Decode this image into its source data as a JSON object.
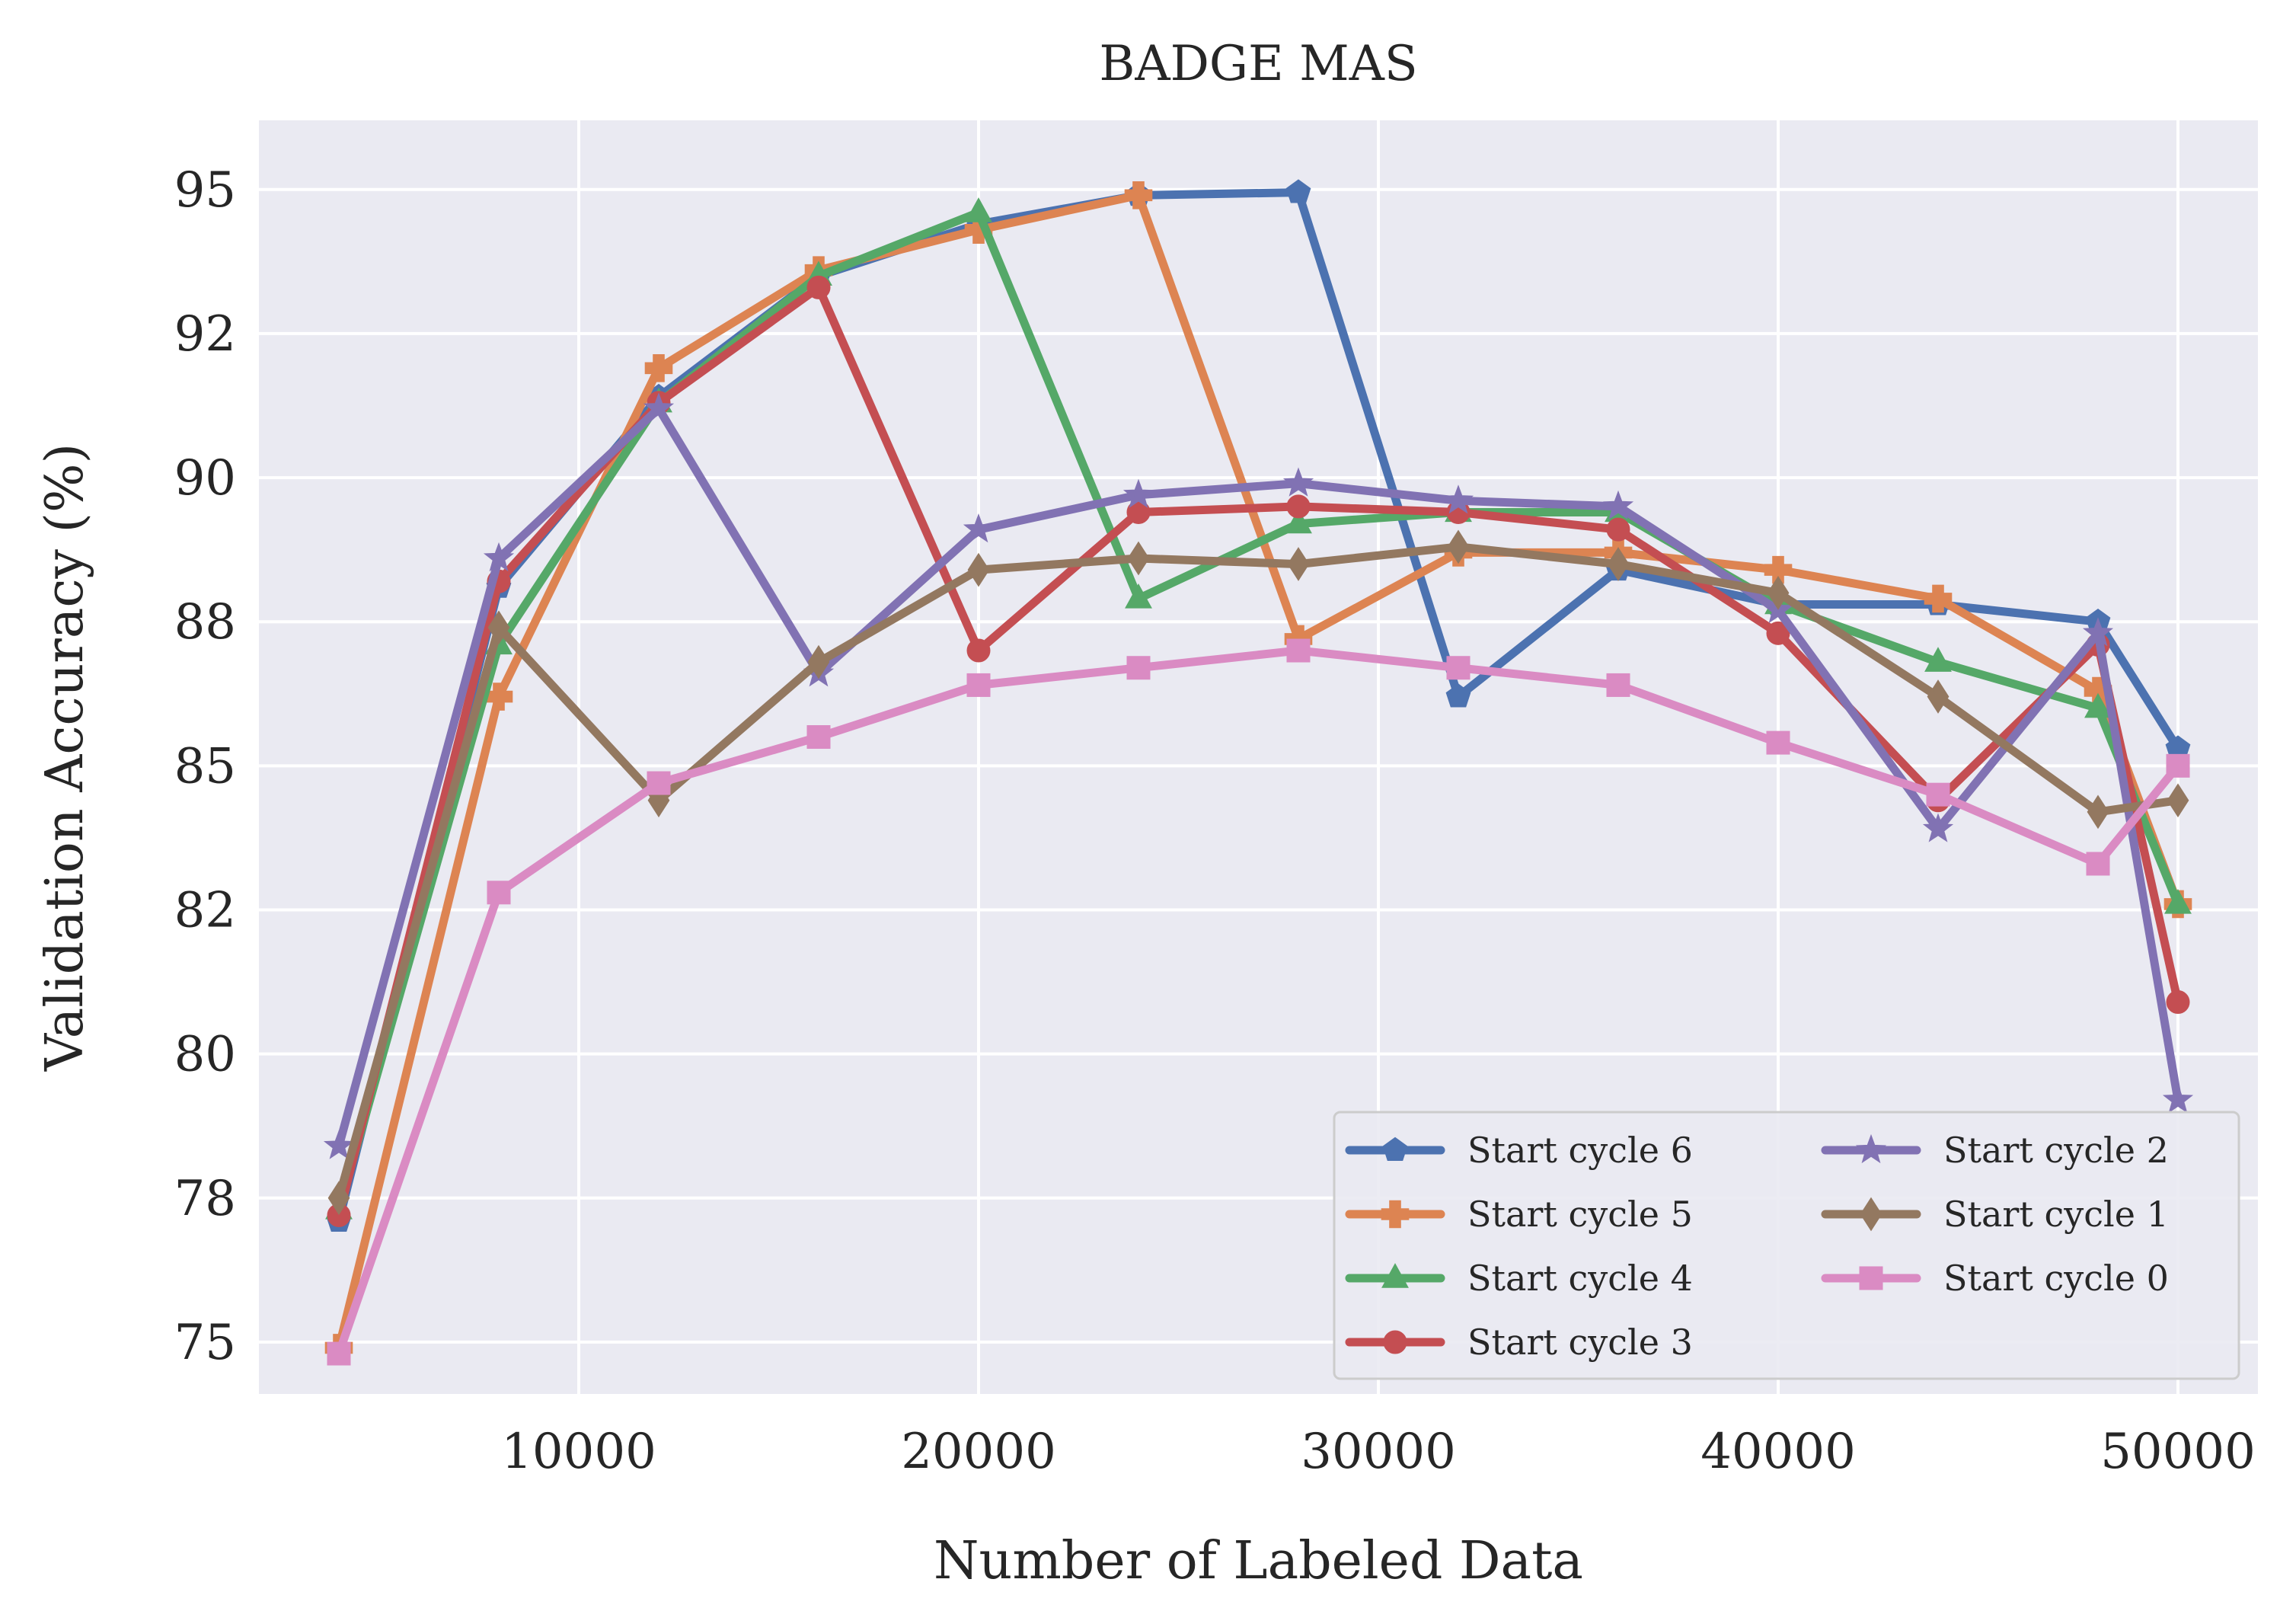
{
  "chart_data": {
    "type": "line",
    "title": "BADGE MAS",
    "xlabel": "Number of Labeled Data",
    "ylabel": "Validation Accuracy (%)",
    "xlim": [
      2000,
      52000
    ],
    "ylim": [
      74.1,
      96.2
    ],
    "x_ticks": [
      10000,
      20000,
      30000,
      40000,
      50000
    ],
    "x_tick_labels": [
      "10000",
      "20000",
      "30000",
      "40000",
      "50000"
    ],
    "y_ticks": [
      75,
      77.5,
      80,
      82.5,
      85,
      87.5,
      90,
      92.5,
      95
    ],
    "y_tick_labels": [
      "75",
      "78",
      "80",
      "82",
      "85",
      "88",
      "90",
      "92",
      "95"
    ],
    "grid": true,
    "background": "#eaeaf2",
    "legend_position": "lower right",
    "legend_columns": 2,
    "x": [
      4000,
      8000,
      12000,
      16000,
      20000,
      24000,
      28000,
      32000,
      36000,
      40000,
      44000,
      48000,
      50000
    ],
    "series": [
      {
        "name": "Start cycle 6",
        "color": "#4c72b0",
        "marker": "pentagon",
        "values": [
          77.1,
          88.1,
          91.4,
          93.5,
          94.4,
          94.9,
          94.95,
          86.2,
          88.4,
          87.8,
          87.8,
          87.5,
          85.3
        ]
      },
      {
        "name": "Start cycle 5",
        "color": "#dd8452",
        "marker": "plus",
        "values": [
          74.9,
          86.2,
          91.9,
          93.6,
          94.3,
          94.9,
          87.2,
          88.7,
          88.7,
          88.4,
          87.9,
          86.3,
          82.6
        ]
      },
      {
        "name": "Start cycle 4",
        "color": "#55a868",
        "marker": "triangle",
        "values": [
          77.3,
          87.1,
          91.3,
          93.5,
          94.6,
          87.9,
          89.2,
          89.4,
          89.4,
          87.8,
          86.8,
          86.0,
          82.6
        ]
      },
      {
        "name": "Start cycle 3",
        "color": "#c44e52",
        "marker": "circle",
        "values": [
          77.2,
          88.2,
          91.3,
          93.3,
          87.0,
          89.4,
          89.5,
          89.4,
          89.1,
          87.3,
          84.4,
          87.1,
          80.9
        ]
      },
      {
        "name": "Start cycle 2",
        "color": "#8172b3",
        "marker": "star",
        "values": [
          78.4,
          88.6,
          91.2,
          86.6,
          89.1,
          89.7,
          89.9,
          89.6,
          89.5,
          87.7,
          83.9,
          87.3,
          79.2
        ]
      },
      {
        "name": "Start cycle 1",
        "color": "#937860",
        "marker": "diamond",
        "values": [
          77.5,
          87.4,
          84.4,
          86.8,
          88.4,
          88.6,
          88.5,
          88.8,
          88.5,
          88.0,
          86.2,
          84.2,
          84.4
        ]
      },
      {
        "name": "Start cycle 0",
        "color": "#da8bc3",
        "marker": "square",
        "values": [
          74.8,
          82.8,
          84.7,
          85.5,
          86.4,
          86.7,
          87.0,
          86.7,
          86.4,
          85.4,
          84.5,
          83.3,
          85.0
        ]
      }
    ]
  }
}
